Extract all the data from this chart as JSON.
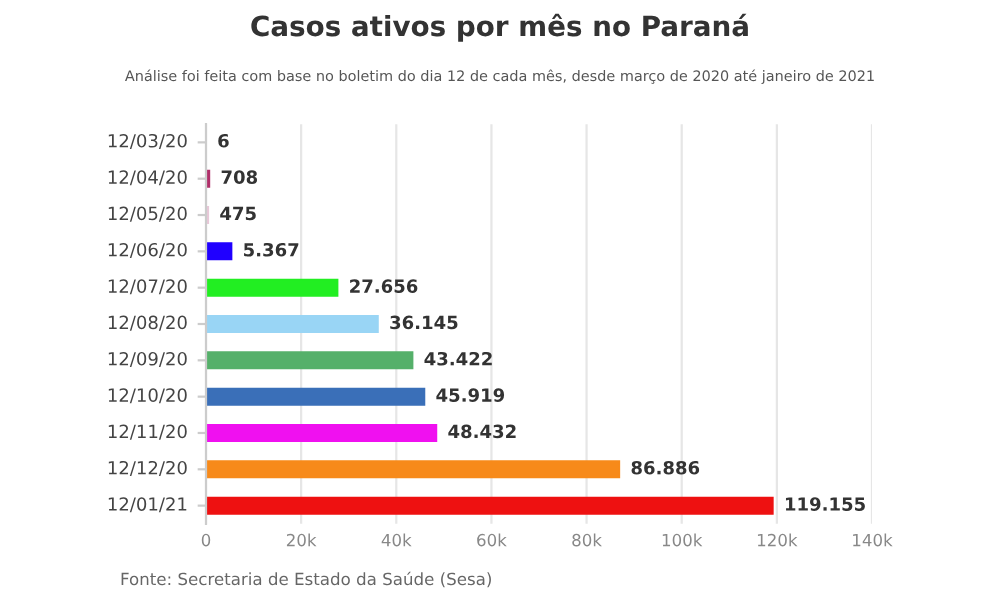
{
  "chart_data": {
    "type": "bar",
    "orientation": "horizontal",
    "title": "Casos ativos por mês no Paraná",
    "subtitle": "Análise foi feita com base no boletim do dia 12 de cada mês, desde março de 2020 até janeiro de 2021",
    "categories": [
      "12/03/20",
      "12/04/20",
      "12/05/20",
      "12/06/20",
      "12/07/20",
      "12/08/20",
      "12/09/20",
      "12/10/20",
      "12/11/20",
      "12/12/20",
      "12/01/21"
    ],
    "values": [
      6,
      708,
      475,
      5367,
      27656,
      36145,
      43422,
      45919,
      48432,
      86886,
      119155
    ],
    "value_labels": [
      "6",
      "708",
      "475",
      "5.367",
      "27.656",
      "36.145",
      "43.422",
      "45.919",
      "48.432",
      "86.886",
      "119.155"
    ],
    "colors": [
      "#999999",
      "#b0306a",
      "#e8c8d8",
      "#2000ff",
      "#22ee22",
      "#99d5f5",
      "#55b06a",
      "#3a6fb8",
      "#f010f0",
      "#f78a1a",
      "#ee1111"
    ],
    "xlim": [
      0,
      140000
    ],
    "xticks": [
      0,
      {
        "value": 20000,
        "label": "20k"
      },
      {
        "value": 40000,
        "label": "40k"
      },
      {
        "value": 60000,
        "label": "60k"
      },
      {
        "value": 80000,
        "label": "80k"
      },
      {
        "value": 100000,
        "label": "100k"
      },
      {
        "value": 120000,
        "label": "120k"
      },
      {
        "value": 140000,
        "label": "140k"
      }
    ],
    "grid": "x",
    "legend": false,
    "annotations": [
      "Fonte: Secretaria de Estado da Saúde (Sesa)"
    ]
  }
}
